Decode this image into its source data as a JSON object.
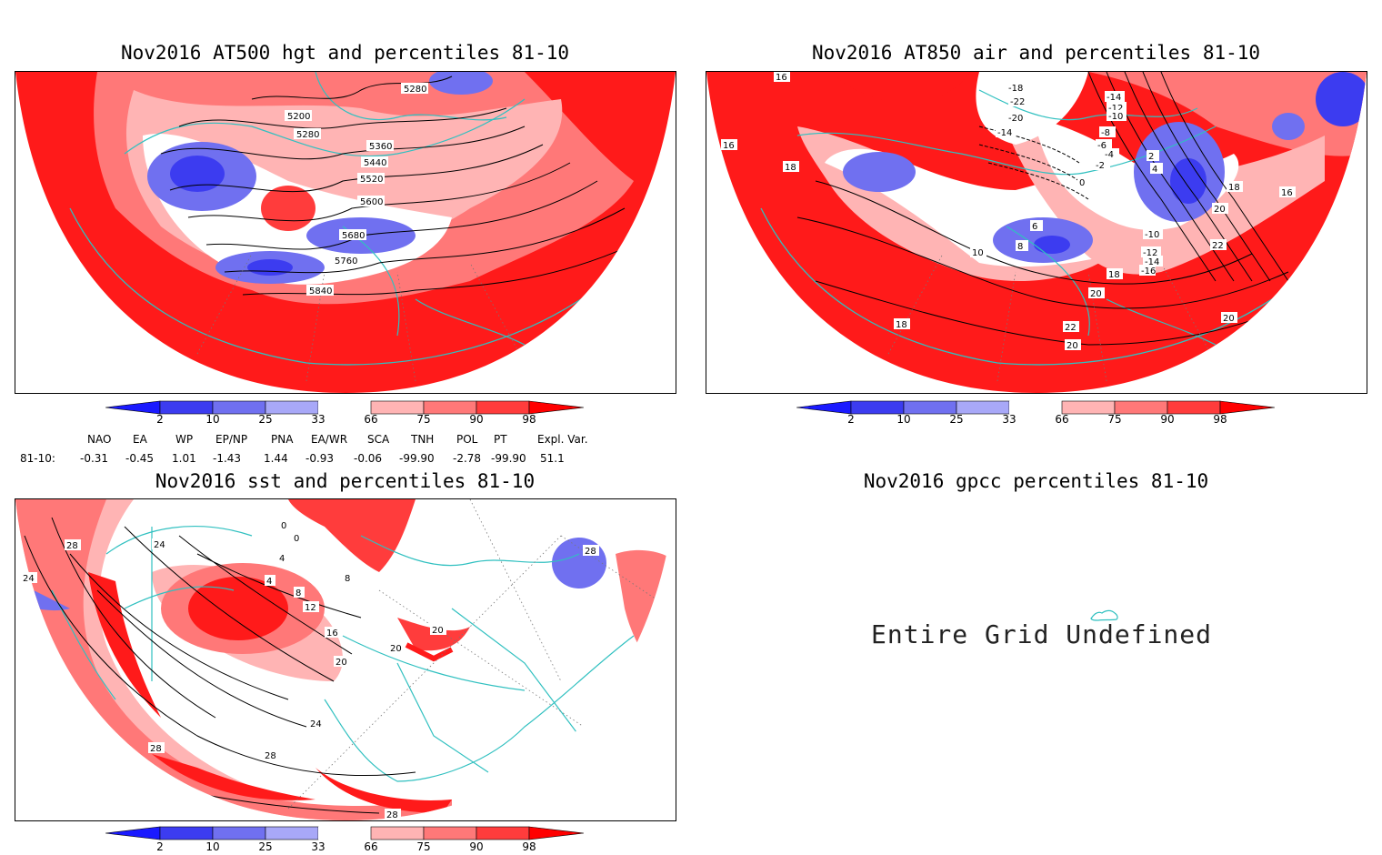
{
  "panels": {
    "p1": {
      "title": "Nov2016 AT500 hgt and percentiles 81-10",
      "contour_labels": [
        "5280",
        "5200",
        "5280",
        "5360",
        "5440",
        "5520",
        "5600",
        "5680",
        "5760",
        "5840"
      ]
    },
    "p2": {
      "title": "Nov2016 AT850 air and percentiles 81-10",
      "contour_labels": [
        "16",
        "16",
        "18",
        "-18",
        "-22",
        "-20",
        "-14",
        "-14",
        "-12",
        "-10",
        "-8",
        "-6",
        "-4",
        "-2",
        "0",
        "2",
        "4",
        "18",
        "16",
        "20",
        "22",
        "6",
        "8",
        "10",
        "-10",
        "-12",
        "-14",
        "-16",
        "18",
        "20",
        "22",
        "20",
        "18",
        "20"
      ]
    },
    "p3": {
      "title": "Nov2016 sst and percentiles 81-10",
      "contour_labels": [
        "28",
        "24",
        "24",
        "0",
        "0",
        "4",
        "4",
        "8",
        "8",
        "12",
        "16",
        "20",
        "20",
        "20",
        "24",
        "28",
        "28",
        "28",
        "28"
      ]
    },
    "p4": {
      "title": "Nov2016 gpcc percentiles 81-10",
      "message": "Entire Grid Undefined"
    }
  },
  "colorbar": {
    "labels": [
      "2",
      "10",
      "25",
      "33",
      "66",
      "75",
      "90",
      "98"
    ],
    "colors": [
      "#1a1aff",
      "#3c3cf0",
      "#7070f0",
      "#a8a8f8",
      "#ffffff",
      "#ffb4b4",
      "#ff7878",
      "#ff3c3c",
      "#ff0000"
    ]
  },
  "indices": {
    "headers": [
      "NAO",
      "EA",
      "WP",
      "EP/NP",
      "PNA",
      "EA/WR",
      "SCA",
      "TNH",
      "POL",
      "PT",
      "Expl. Var."
    ],
    "row_label": "81-10:",
    "values": [
      "-0.31",
      "-0.45",
      "1.01",
      "-1.43",
      "1.44",
      "-0.93",
      "-0.06",
      "-99.90",
      "-2.78",
      "-99.90",
      "51.1"
    ]
  },
  "colors": {
    "coast": "#30c0c0",
    "red": "#ff1a1a",
    "blue": "#3a3ae0"
  }
}
